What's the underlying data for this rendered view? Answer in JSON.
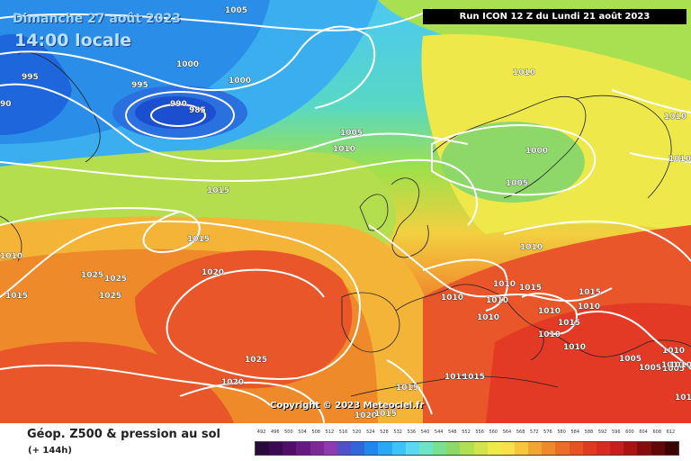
{
  "header": {
    "date": "Dimanche 27 août 2023",
    "time": "14:00 locale",
    "run": "Run ICON 12 Z du Lundi 21 août 2023"
  },
  "copyright": "Copyright © 2023 Meteociel.fr",
  "footer": {
    "title": "Géop. Z500 & pression au sol",
    "subtitle": "(+ 144h)"
  },
  "isobar_labels": [
    "1005",
    "995",
    "1000",
    "1000",
    "90",
    "995",
    "990",
    "985",
    "1010",
    "1005",
    "1010",
    "1010",
    "1015",
    "1000",
    "1005",
    "1010",
    "1015",
    "1010",
    "1015",
    "1010",
    "1025",
    "1025",
    "1025",
    "1020",
    "1015",
    "1010",
    "1010",
    "1015",
    "1010",
    "1010",
    "1010",
    "1010",
    "1015",
    "1010",
    "1010",
    "1010",
    "1005",
    "1005",
    "1005",
    "1025",
    "1020",
    "1015",
    "1015",
    "1015",
    "1020",
    "1015",
    "1010",
    "1010",
    "1010"
  ],
  "legend": {
    "values": [
      "492",
      "496",
      "500",
      "504",
      "508",
      "512",
      "516",
      "520",
      "524",
      "528",
      "532",
      "536",
      "540",
      "544",
      "548",
      "552",
      "556",
      "560",
      "564",
      "568",
      "572",
      "576",
      "580",
      "584",
      "588",
      "592",
      "596",
      "600",
      "604",
      "608",
      "612"
    ],
    "colors": [
      "#2a0a3a",
      "#3c0a50",
      "#500f66",
      "#661a80",
      "#7d2a99",
      "#8c3cb0",
      "#5050c8",
      "#3066d8",
      "#1e88ee",
      "#28a8f6",
      "#3cc4f8",
      "#5ad8ee",
      "#6ee4c6",
      "#78e08e",
      "#8ed86a",
      "#b2de52",
      "#d2e44c",
      "#eeea4a",
      "#fae04a",
      "#f6c63c",
      "#f2a632",
      "#ee8a2a",
      "#ea6e26",
      "#e65222",
      "#e03a20",
      "#d82a20",
      "#c81e1e",
      "#a81414",
      "#840c0c",
      "#600808",
      "#3a0404"
    ]
  }
}
